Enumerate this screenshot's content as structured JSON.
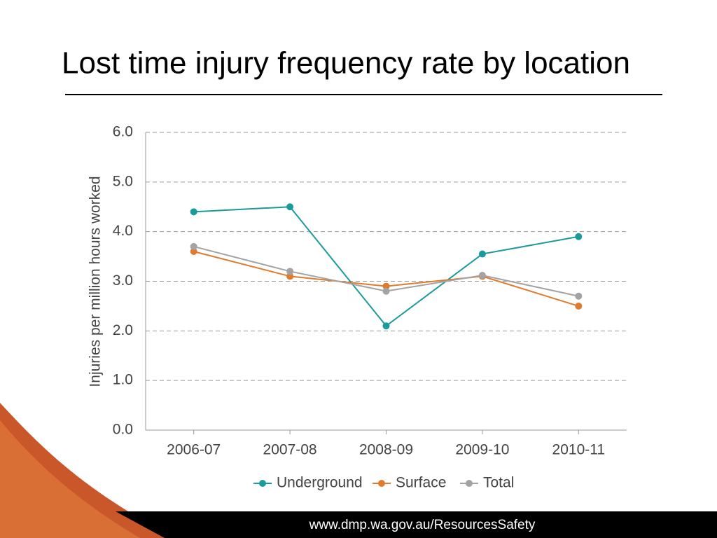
{
  "chart_data": {
    "type": "line",
    "title": "Lost time injury frequency rate by location",
    "y_label": "Injuries per million hours worked",
    "categories": [
      "2006-07",
      "2007-08",
      "2008-09",
      "2009-10",
      "2010-11"
    ],
    "series": [
      {
        "name": "Underground",
        "color": "#1b9a9c",
        "values": [
          4.4,
          4.5,
          2.1,
          3.55,
          3.9
        ]
      },
      {
        "name": "Surface",
        "color": "#e07b2e",
        "values": [
          3.6,
          3.1,
          2.9,
          3.1,
          2.5
        ]
      },
      {
        "name": "Total",
        "color": "#a3a3a3",
        "values": [
          3.7,
          3.2,
          2.8,
          3.12,
          2.7
        ]
      }
    ],
    "ylim": [
      0,
      6
    ],
    "yticks": [
      {
        "value": 0,
        "label": "0.0"
      },
      {
        "value": 1,
        "label": "1.0"
      },
      {
        "value": 2,
        "label": "2.0"
      },
      {
        "value": 3,
        "label": "3.0"
      },
      {
        "value": 4,
        "label": "4.0"
      },
      {
        "value": 5,
        "label": "5.0"
      },
      {
        "value": 6,
        "label": "6.0"
      }
    ],
    "grid": true,
    "legend": "bottom"
  },
  "footer": "www.dmp.wa.gov.au/ResourcesSafety"
}
